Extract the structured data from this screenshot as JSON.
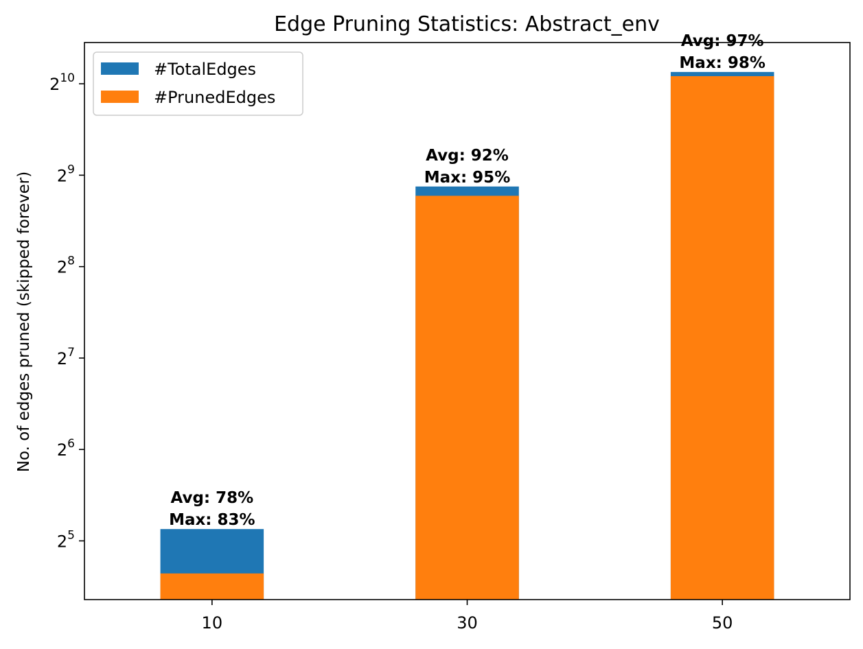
{
  "chart_data": {
    "type": "bar",
    "stacked": false,
    "overlay": true,
    "title": "Edge Pruning Statistics: Abstract_env",
    "xlabel": "",
    "ylabel": "No. of edges pruned (skipped forever)",
    "y_scale": "log2",
    "y_tick_labels": [
      {
        "base": "2",
        "exp": "5",
        "value": 32
      },
      {
        "base": "2",
        "exp": "6",
        "value": 64
      },
      {
        "base": "2",
        "exp": "7",
        "value": 128
      },
      {
        "base": "2",
        "exp": "8",
        "value": 256
      },
      {
        "base": "2",
        "exp": "9",
        "value": 512
      },
      {
        "base": "2",
        "exp": "10",
        "value": 1024
      }
    ],
    "ylim": [
      20.5,
      1400
    ],
    "categories": [
      "10",
      "30",
      "50"
    ],
    "series": [
      {
        "name": "#TotalEdges",
        "color": "#1f77b4",
        "values": [
          35,
          470,
          1120
        ]
      },
      {
        "name": "#PrunedEdges",
        "color": "#ff7f0e",
        "values": [
          25,
          438,
          1085
        ]
      }
    ],
    "bar_labels": [
      {
        "avg": "Avg: 78%",
        "max": "Max: 83%"
      },
      {
        "avg": "Avg: 92%",
        "max": "Max: 95%"
      },
      {
        "avg": "Avg: 97%",
        "max": "Max: 98%"
      }
    ],
    "legend_position": "top-left",
    "grid": false
  }
}
